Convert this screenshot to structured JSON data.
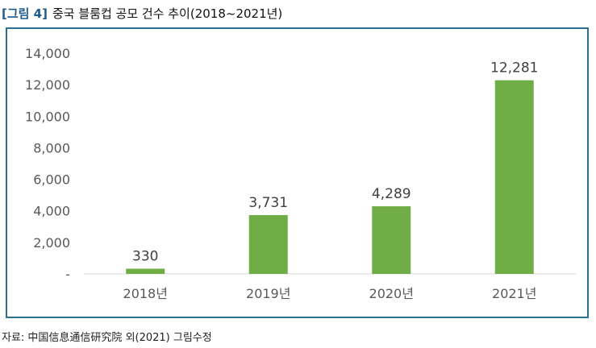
{
  "figure": {
    "number": "[그림 4]",
    "title": "중국 블룸컵 공모 건수 추이(2018~2021년)"
  },
  "source": "자료: 中国信息通信研究院 외(2021) 그림수정",
  "colors": {
    "bar": "#70ad47",
    "frame_border": "#2d6f8e",
    "axis_text": "#595959",
    "figure_number": "#1f5a8a"
  },
  "chart_data": {
    "type": "bar",
    "title": "",
    "xlabel": "",
    "ylabel": "",
    "categories": [
      "2018년",
      "2019년",
      "2020년",
      "2021년"
    ],
    "values": [
      330,
      3731,
      4289,
      12281
    ],
    "data_labels": [
      "330",
      "3,731",
      "4,289",
      "12,281"
    ],
    "ylim": [
      0,
      14000
    ],
    "yticks": [
      0,
      2000,
      4000,
      6000,
      8000,
      10000,
      12000,
      14000
    ],
    "ytick_labels": [
      "-",
      "2,000",
      "4,000",
      "6,000",
      "8,000",
      "10,000",
      "12,000",
      "14,000"
    ],
    "grid": false,
    "legend": "none"
  }
}
